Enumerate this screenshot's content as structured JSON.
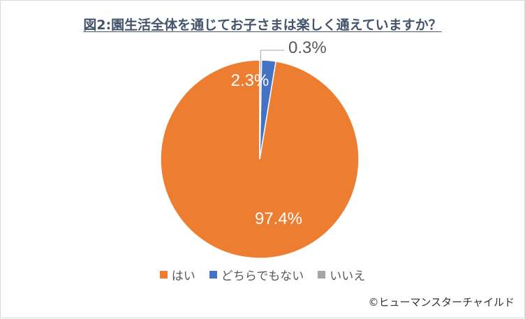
{
  "chart_data": {
    "type": "pie",
    "title": "図2:園生活全体を通じてお子さまは楽しく通えていますか？",
    "categories": [
      "はい",
      "どちらでもない",
      "いいえ"
    ],
    "values": [
      97.4,
      2.3,
      0.3
    ],
    "value_labels": [
      "97.4%",
      "2.3%",
      "0.3%"
    ],
    "colors": [
      "#ed7d31",
      "#4472c4",
      "#a5a5a5"
    ],
    "legend": "bottom",
    "start_angle_deg": 0,
    "direction": "counterclockwise"
  },
  "credit": "©ヒューマンスターチャイルド"
}
